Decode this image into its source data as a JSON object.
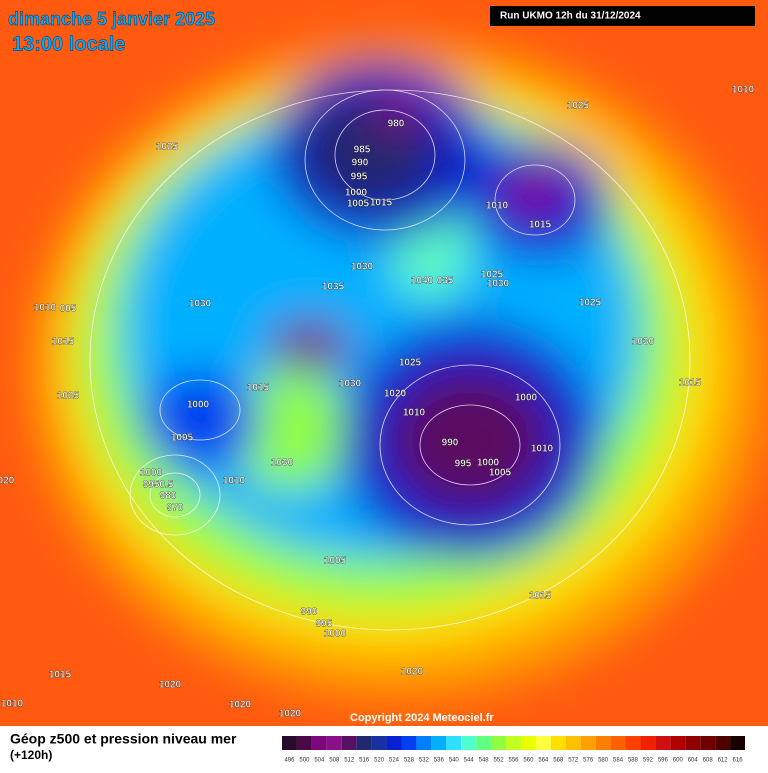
{
  "header": {
    "date": "dimanche 5 janvier 2025",
    "time": "13:00 locale",
    "run": "Run UKMO 12h du 31/12/2024"
  },
  "map": {
    "isobar_labels": [
      "1025",
      "980",
      "985",
      "990",
      "995",
      "1000",
      "1005",
      "1015",
      "1025",
      "1010",
      "1010",
      "1015",
      "1030",
      "1035",
      "1040",
      "035",
      "1025",
      "1030",
      "1025",
      "1030",
      "1010",
      "005",
      "1015",
      "1030",
      "1025",
      "1015",
      "1030",
      "1025",
      "1020",
      "1000",
      "1000",
      "1010",
      "1015",
      "990",
      "1010",
      "1005",
      "995",
      "1000",
      "1005",
      "1030",
      "1000",
      "9950.5",
      "980",
      "970",
      "1010",
      "020",
      "1005",
      "1015",
      "990",
      "995",
      "1000",
      "1015",
      "1020",
      "1020",
      "1020",
      "1010",
      "1020"
    ],
    "copyright": "Copyright 2024 Meteociel.fr"
  },
  "legend": {
    "title": "Géop z500 et pression niveau mer",
    "subtitle": "(+120h)",
    "scale": [
      496,
      500,
      504,
      508,
      512,
      516,
      520,
      524,
      528,
      532,
      536,
      540,
      544,
      548,
      552,
      556,
      560,
      564,
      568,
      572,
      576,
      580,
      584,
      588,
      592,
      596,
      600,
      604,
      608,
      612,
      616
    ],
    "colors": [
      "#2a0a2a",
      "#4a0a4a",
      "#7a087a",
      "#8a108a",
      "#5a1060",
      "#202870",
      "#1830a0",
      "#0820d0",
      "#0040f0",
      "#0080ff",
      "#00b0ff",
      "#30e0ff",
      "#50ffd0",
      "#60ff80",
      "#90ff40",
      "#c0ff20",
      "#e8ff00",
      "#ffff40",
      "#ffe000",
      "#ffc000",
      "#ffa000",
      "#ff8000",
      "#ff6000",
      "#ff4000",
      "#f02000",
      "#d01010",
      "#b00000",
      "#900000",
      "#700000",
      "#500000",
      "#1a0000"
    ]
  }
}
